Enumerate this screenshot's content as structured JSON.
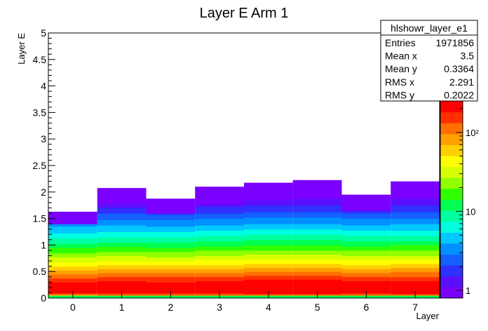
{
  "chart_data": {
    "type": "heatmap",
    "title": "Layer E Arm 1",
    "xlabel": "Layer",
    "ylabel": "Layer E",
    "xlim": [
      -0.5,
      7.5
    ],
    "ylim": [
      0,
      5
    ],
    "x_ticks": [
      "0",
      "1",
      "2",
      "3",
      "4",
      "5",
      "6",
      "7"
    ],
    "y_ticks": [
      "0",
      "0.5",
      "1",
      "1.5",
      "2",
      "2.5",
      "3",
      "3.5",
      "4",
      "4.5",
      "5"
    ],
    "z_scale": "log",
    "z_range": [
      0.8,
      250
    ],
    "palette_ticks": [
      {
        "value": 1,
        "label": "1"
      },
      {
        "value": 10,
        "label": "10"
      },
      {
        "value": 100,
        "label": "10²"
      }
    ],
    "palette_colors": [
      "#7a00ff",
      "#5a10ff",
      "#3030ff",
      "#1560ff",
      "#0090ff",
      "#00c8ff",
      "#00ffe0",
      "#00ffa0",
      "#00ff50",
      "#30ff00",
      "#90ff00",
      "#d8ff00",
      "#ffff00",
      "#ffd000",
      "#ffa000",
      "#ff7000",
      "#ff3000",
      "#ff0000"
    ],
    "columns": [
      {
        "layer": 0,
        "max_energy": 1.62,
        "scale": 0.92
      },
      {
        "layer": 1,
        "max_energy": 2.06,
        "scale": 1.0
      },
      {
        "layer": 2,
        "max_energy": 1.86,
        "scale": 0.98
      },
      {
        "layer": 3,
        "max_energy": 2.08,
        "scale": 1.05
      },
      {
        "layer": 4,
        "max_energy": 2.16,
        "scale": 1.12
      },
      {
        "layer": 5,
        "max_energy": 2.21,
        "scale": 1.12
      },
      {
        "layer": 6,
        "max_energy": 1.93,
        "scale": 1.05
      },
      {
        "layer": 7,
        "max_energy": 2.19,
        "scale": 1.08
      }
    ],
    "stats": {
      "name": "hlshowr_layer_e1",
      "rows": [
        {
          "label": "Entries",
          "value": "1971856"
        },
        {
          "label": "Mean x",
          "value": "3.5"
        },
        {
          "label": "Mean y",
          "value": "0.3364"
        },
        {
          "label": "RMS x",
          "value": "2.291"
        },
        {
          "label": "RMS y",
          "value": "0.2022"
        }
      ]
    }
  }
}
